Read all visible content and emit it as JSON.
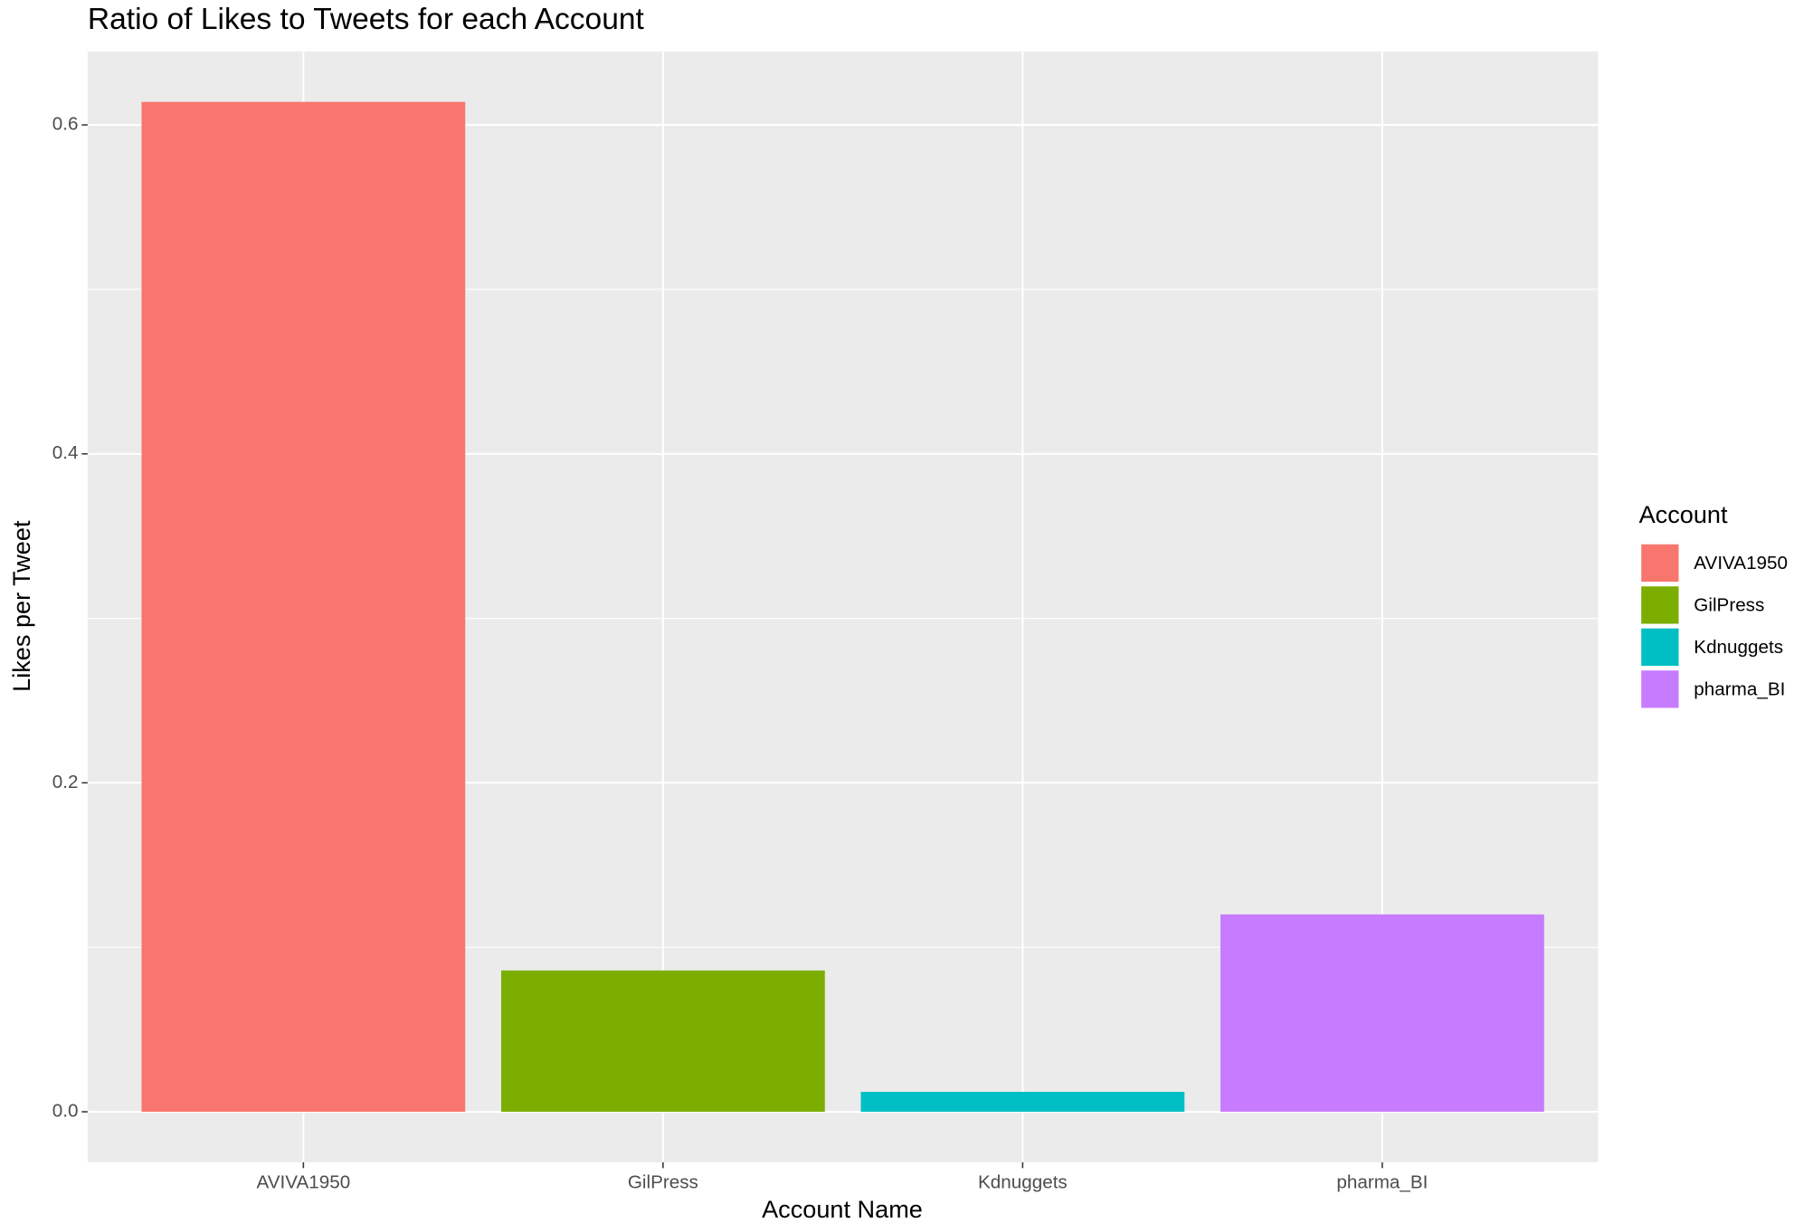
{
  "chart_data": {
    "type": "bar",
    "title": "Ratio of Likes to Tweets for each Account",
    "x_label": "Account Name",
    "y_label": "Likes per Tweet",
    "categories": [
      "AVIVA1950",
      "GilPress",
      "Kdnuggets",
      "pharma_BI"
    ],
    "series": [
      {
        "name": "AVIVA1950",
        "color": "#F8766D",
        "values": [
          0.614,
          null,
          null,
          null
        ]
      },
      {
        "name": "GilPress",
        "color": "#7CAE00",
        "values": [
          null,
          0.0859,
          null,
          null
        ]
      },
      {
        "name": "Kdnuggets",
        "color": "#00BFC4",
        "values": [
          null,
          null,
          0.0121,
          null
        ]
      },
      {
        "name": "pharma_BI",
        "color": "#C77CFF",
        "values": [
          null,
          null,
          null,
          0.12
        ]
      }
    ],
    "legend_title": "Account",
    "ylim": [
      -0.0307,
      0.6447
    ],
    "yticks": [
      {
        "value": 0,
        "label": "0.0"
      },
      {
        "value": 0.2,
        "label": "0.2"
      },
      {
        "value": 0.4,
        "label": "0.4"
      },
      {
        "value": 0.6,
        "label": "0.6"
      }
    ],
    "grid": true,
    "legend_position": "right"
  }
}
